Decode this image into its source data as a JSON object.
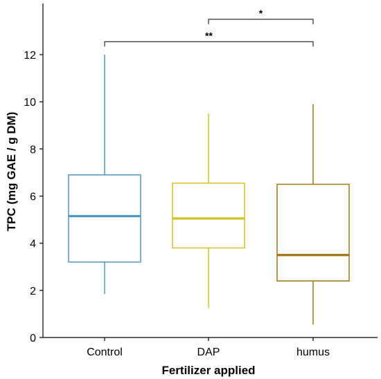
{
  "chart_data": {
    "type": "boxplot",
    "xlabel": "Fertilizer applied",
    "ylabel": "TPC (mg GAE / g DM)",
    "ylim": [
      0,
      14
    ],
    "yticks": [
      0,
      2,
      4,
      6,
      8,
      10,
      12
    ],
    "ytick_labels": [
      "0",
      "2",
      "4",
      "6",
      "8",
      "10",
      "12"
    ],
    "grid": false,
    "legend": "none",
    "categories": [
      "Control",
      "DAP",
      "humus"
    ],
    "boxes": [
      {
        "category": "Control",
        "min": 1.85,
        "q1": 3.2,
        "median": 5.15,
        "q3": 6.9,
        "max": 12.0,
        "color": "#4d97c6"
      },
      {
        "category": "DAP",
        "min": 1.25,
        "q1": 3.8,
        "median": 5.05,
        "q3": 6.55,
        "max": 9.5,
        "color": "#d4c21c"
      },
      {
        "category": "humus",
        "min": 0.55,
        "q1": 2.4,
        "median": 3.5,
        "q3": 6.5,
        "max": 9.9,
        "color": "#a0750f"
      }
    ],
    "significance": [
      {
        "from": "DAP",
        "to": "humus",
        "label": "*",
        "y": 13.5
      },
      {
        "from": "Control",
        "to": "humus",
        "label": "**",
        "y": 12.55
      }
    ]
  }
}
